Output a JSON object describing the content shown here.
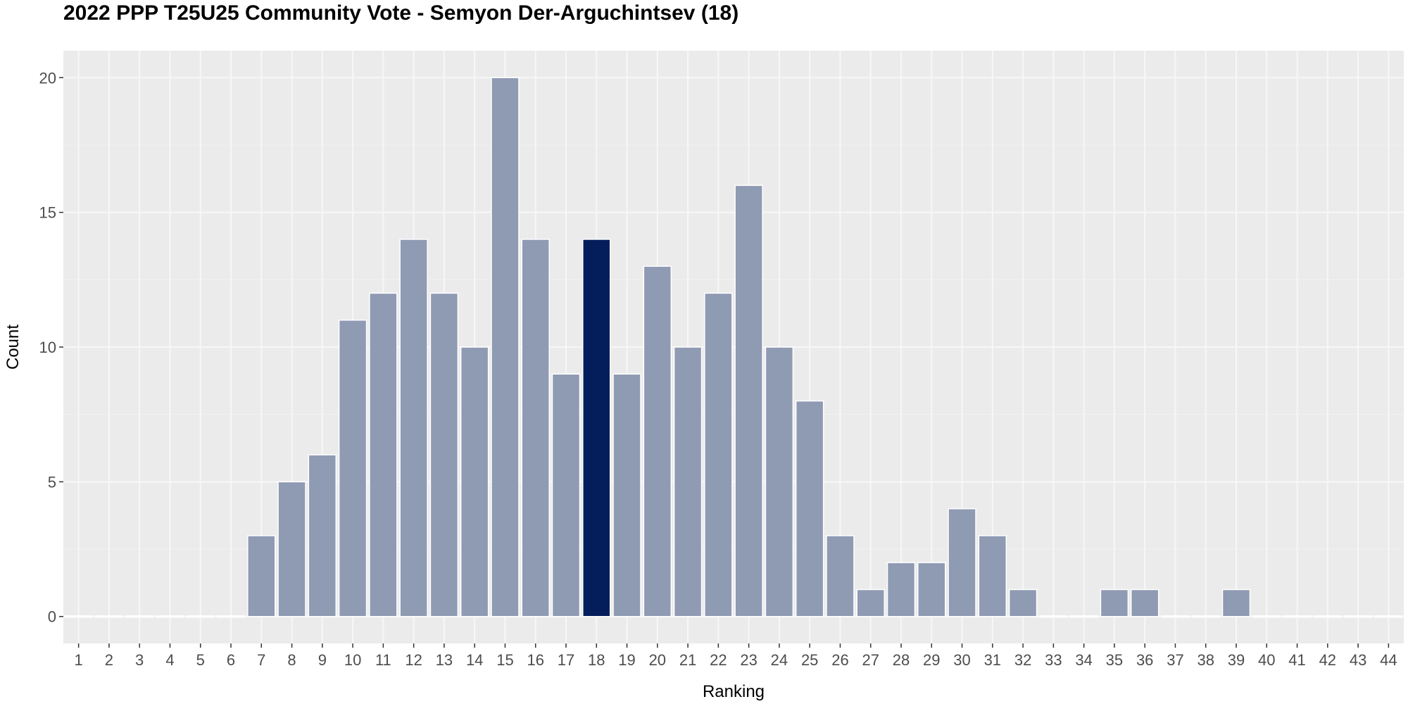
{
  "chart_data": {
    "type": "bar",
    "title": "2022 PPP T25U25 Community Vote - Semyon Der-Arguchintsev (18)",
    "xlabel": "Ranking",
    "ylabel": "Count",
    "categories": [
      "1",
      "2",
      "3",
      "4",
      "5",
      "6",
      "7",
      "8",
      "9",
      "10",
      "11",
      "12",
      "13",
      "14",
      "15",
      "16",
      "17",
      "18",
      "19",
      "20",
      "21",
      "22",
      "23",
      "24",
      "25",
      "26",
      "27",
      "28",
      "29",
      "30",
      "31",
      "32",
      "33",
      "34",
      "35",
      "36",
      "37",
      "38",
      "39",
      "40",
      "41",
      "42",
      "43",
      "44"
    ],
    "values": [
      0,
      0,
      0,
      0,
      0,
      0,
      3,
      5,
      6,
      11,
      12,
      14,
      12,
      10,
      20,
      14,
      9,
      14,
      9,
      13,
      10,
      12,
      16,
      10,
      8,
      3,
      1,
      2,
      2,
      4,
      3,
      1,
      0,
      0,
      1,
      1,
      0,
      0,
      1,
      0,
      0,
      0,
      0,
      0
    ],
    "highlight_category": "18",
    "ylim": [
      -1,
      21
    ],
    "yticks": [
      0,
      5,
      10,
      15,
      20
    ],
    "grid": true,
    "legend": "none",
    "colors": {
      "bar": "#8f9ab3",
      "highlight": "#041e5b",
      "panel": "#ebebeb",
      "grid_major": "#f7f7f7",
      "grid_minor": "#f2f2f2",
      "bar_outline": "#ffffff"
    }
  }
}
